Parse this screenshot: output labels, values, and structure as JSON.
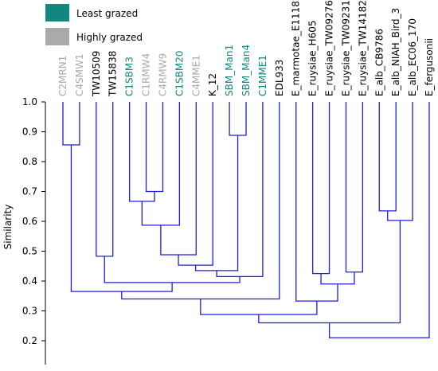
{
  "chart_data": {
    "type": "dendrogram",
    "y_label": "Similarity",
    "legend": [
      {
        "name": "Least grazed",
        "color": "#12877f"
      },
      {
        "name": "Highly grazed",
        "color": "#aaaaaa"
      }
    ],
    "line_color": "#1f1fd6",
    "ylim": [
      0.15,
      1.0
    ],
    "yticks": [
      {
        "value": 1.0,
        "label": "1.0"
      },
      0.9,
      0.8,
      0.7,
      0.6,
      0.5,
      0.4,
      0.3,
      0.2
    ],
    "leaves": [
      {
        "name": "C2MRN1",
        "color": "#aaaaaa"
      },
      {
        "name": "C4SMW1",
        "color": "#aaaaaa"
      },
      {
        "name": "TW10509",
        "color": "#000000"
      },
      {
        "name": "TW15838",
        "color": "#000000"
      },
      {
        "name": "C1SBM3",
        "color": "#12877f"
      },
      {
        "name": "C1RMW4",
        "color": "#aaaaaa"
      },
      {
        "name": "C4RMW9",
        "color": "#aaaaaa"
      },
      {
        "name": "C1SBM20",
        "color": "#12877f"
      },
      {
        "name": "C4MME1",
        "color": "#aaaaaa"
      },
      {
        "name": "K_12",
        "color": "#000000"
      },
      {
        "name": "SBM_Man1",
        "color": "#12877f"
      },
      {
        "name": "SBM_Man4",
        "color": "#12877f"
      },
      {
        "name": "C1MME1",
        "color": "#12877f"
      },
      {
        "name": "EDL933",
        "color": "#000000"
      },
      {
        "name": "E_marmotae_E1118",
        "color": "#000000"
      },
      {
        "name": "E_ruysiae_H605",
        "color": "#000000"
      },
      {
        "name": "E_ruysiae_TW09276",
        "color": "#000000"
      },
      {
        "name": "E_ruysiae_TW09231",
        "color": "#000000"
      },
      {
        "name": "E_ruysiae_TW14182",
        "color": "#000000"
      },
      {
        "name": "E_alb_CB9786",
        "color": "#000000"
      },
      {
        "name": "E_alb_NIAH_Bird_3",
        "color": "#000000"
      },
      {
        "name": "E_alb_EC06_170",
        "color": "#000000"
      },
      {
        "name": "E_fergusonii",
        "color": "#000000"
      }
    ],
    "merges": [
      [
        0,
        1,
        0.856
      ],
      [
        2,
        3,
        0.483
      ],
      [
        5,
        6,
        0.7
      ],
      [
        4,
        25,
        0.667
      ],
      [
        26,
        7,
        0.587
      ],
      [
        27,
        8,
        0.488
      ],
      [
        28,
        9,
        0.453
      ],
      [
        10,
        11,
        0.888
      ],
      [
        29,
        30,
        0.435
      ],
      [
        31,
        12,
        0.415
      ],
      [
        24,
        32,
        0.395
      ],
      [
        23,
        33,
        0.365
      ],
      [
        34,
        13,
        0.34
      ],
      [
        15,
        16,
        0.425
      ],
      [
        17,
        18,
        0.43
      ],
      [
        36,
        37,
        0.39
      ],
      [
        14,
        38,
        0.333
      ],
      [
        35,
        39,
        0.288
      ],
      [
        19,
        20,
        0.635
      ],
      [
        41,
        21,
        0.603
      ],
      [
        40,
        42,
        0.26
      ],
      [
        43,
        22,
        0.21
      ]
    ]
  }
}
